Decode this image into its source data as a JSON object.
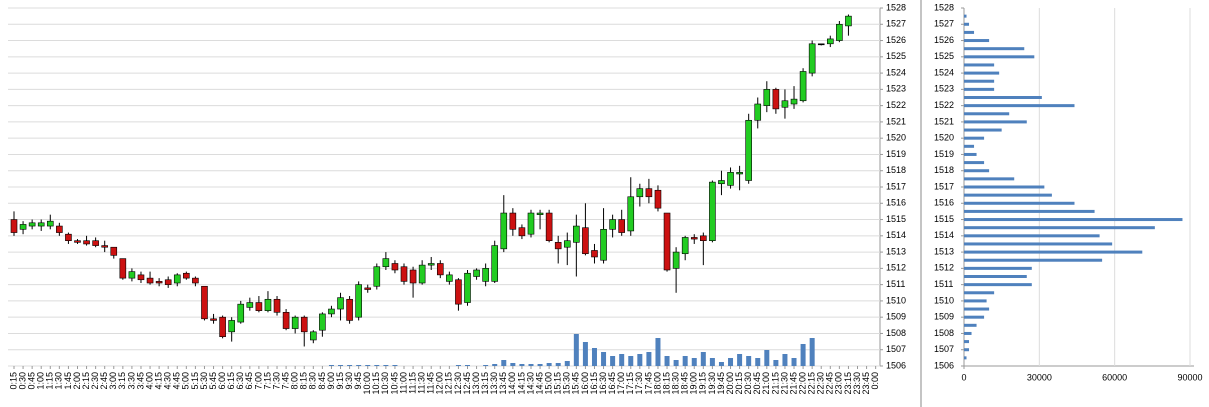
{
  "chart_data": {
    "type": "candlestick",
    "categories": [
      "0:15",
      "0:30",
      "0:45",
      "1:00",
      "1:15",
      "1:30",
      "1:45",
      "2:00",
      "2:15",
      "2:30",
      "2:45",
      "3:00",
      "3:15",
      "3:30",
      "3:45",
      "4:00",
      "4:15",
      "4:30",
      "4:45",
      "5:00",
      "5:15",
      "5:30",
      "5:45",
      "6:00",
      "6:15",
      "6:30",
      "6:45",
      "7:00",
      "7:15",
      "7:30",
      "7:45",
      "8:00",
      "8:15",
      "8:30",
      "8:45",
      "9:00",
      "9:15",
      "9:30",
      "9:45",
      "10:00",
      "10:15",
      "10:30",
      "10:45",
      "11:00",
      "11:15",
      "11:30",
      "11:45",
      "12:00",
      "12:15",
      "12:30",
      "12:45",
      "13:00",
      "13:15",
      "13:30",
      "13:45",
      "14:00",
      "14:15",
      "14:30",
      "14:45",
      "15:00",
      "15:15",
      "15:30",
      "15:45",
      "16:00",
      "16:15",
      "16:30",
      "16:45",
      "17:00",
      "17:15",
      "17:30",
      "17:45",
      "18:00",
      "18:15",
      "18:30",
      "18:45",
      "19:00",
      "19:15",
      "19:30",
      "19:45",
      "20:00",
      "20:15",
      "20:30",
      "20:45",
      "21:00",
      "21:15",
      "21:30",
      "21:45",
      "22:00",
      "22:15",
      "22:30",
      "22:45",
      "23:00",
      "23:15",
      "23:30",
      "23:45",
      "0:00"
    ],
    "open": [
      1515,
      1514.4,
      1514.6,
      1514.6,
      1514.6,
      1514.6,
      1514.1,
      1513.7,
      1513.7,
      1513.7,
      1513.4,
      1513.3,
      1512.6,
      1511.4,
      1511.6,
      1511.4,
      1511.2,
      1511.3,
      1511.1,
      1511.7,
      1511.4,
      1510.9,
      1508.9,
      1509,
      1508.1,
      1508.7,
      1509.6,
      1509.9,
      1509.4,
      1510.1,
      1509.3,
      1508.3,
      1509,
      1507.6,
      1508.2,
      1509.2,
      1509.5,
      1510.1,
      1509,
      1510.8,
      1510.9,
      1512.1,
      1512.3,
      1512.1,
      1511.9,
      1511.1,
      1512.2,
      1512.3,
      1511.2,
      1511.3,
      1509.9,
      1511.5,
      1511.2,
      1511.2,
      1513.2,
      1515.4,
      1514.5,
      1514.1,
      1515.3,
      1515.4,
      1513.6,
      1513.3,
      1513.6,
      1514.5,
      1513.1,
      1512.5,
      1514.4,
      1515,
      1514.3,
      1516.4,
      1516.9,
      1516.8,
      1515.4,
      1512,
      1512.9,
      1513.9,
      1514,
      1513.7,
      1517.2,
      1517.1,
      1517.8,
      1517.4,
      1521.1,
      1522,
      1523,
      1521.9,
      1522.1,
      1522.3,
      1524,
      1525.8,
      1525.8,
      1526,
      1526.9,
      null,
      null,
      null
    ],
    "high": [
      1515.5,
      1514.9,
      1515,
      1515,
      1515.3,
      1514.8,
      1514.2,
      1513.8,
      1514,
      1513.9,
      1513.7,
      1513.3,
      1512.6,
      1512,
      1511.8,
      1511.8,
      1511.4,
      1511.5,
      1511.7,
      1511.8,
      1511.5,
      1510.9,
      1509.2,
      1509.1,
      1509,
      1510,
      1510.2,
      1510.3,
      1510.6,
      1510.3,
      1509.5,
      1509.1,
      1509.1,
      1508.2,
      1509.3,
      1509.7,
      1510.5,
      1510.3,
      1511.2,
      1511,
      1512.3,
      1513,
      1512.5,
      1512.3,
      1512.1,
      1512.5,
      1512.7,
      1512.5,
      1511.8,
      1511.4,
      1511.9,
      1512,
      1512.3,
      1513.7,
      1516.5,
      1515.7,
      1514.7,
      1515.6,
      1515.6,
      1515.6,
      1514,
      1514.2,
      1515.3,
      1516,
      1513.5,
      1515.7,
      1515.3,
      1515.6,
      1517.6,
      1517.2,
      1517.5,
      1517.1,
      1515.4,
      1513.3,
      1514,
      1514.1,
      1514.2,
      1517.4,
      1518,
      1518.2,
      1518.3,
      1521.5,
      1522.5,
      1523.5,
      1523.1,
      1523,
      1523.2,
      1524.3,
      1526,
      1525.8,
      1526.3,
      1527.2,
      1527.6,
      null,
      null,
      null
    ],
    "low": [
      1514,
      1514.1,
      1514.4,
      1514.3,
      1514.4,
      1514,
      1513.5,
      1513.5,
      1513.4,
      1513.3,
      1513,
      1512.6,
      1511.3,
      1511.2,
      1511.1,
      1511,
      1510.9,
      1510.8,
      1510.9,
      1511.3,
      1510.9,
      1508.8,
      1508.6,
      1507.7,
      1507.5,
      1508.6,
      1509.4,
      1509.3,
      1509.3,
      1509.1,
      1508.2,
      1508,
      1507.2,
      1507.4,
      1507.8,
      1509,
      1508.8,
      1508.6,
      1508.8,
      1510.5,
      1510.7,
      1511.9,
      1511.7,
      1511,
      1510.2,
      1511,
      1511.9,
      1511.4,
      1511,
      1509.4,
      1509.7,
      1511.3,
      1510.9,
      1511.1,
      1513,
      1514,
      1513.8,
      1513.9,
      1514.4,
      1513.6,
      1512.3,
      1512.2,
      1511.5,
      1512.8,
      1512.3,
      1512.3,
      1513.9,
      1514,
      1514,
      1515.8,
      1516,
      1515.5,
      1511.8,
      1510.5,
      1512.5,
      1513.5,
      1512.2,
      1513.6,
      1516.5,
      1516.9,
      1516.8,
      1517.2,
      1520.6,
      1521.6,
      1521.5,
      1521.2,
      1521.8,
      1522.2,
      1523.8,
      1525.7,
      1525.6,
      1525.9,
      1526.3,
      null,
      null,
      null
    ],
    "close": [
      1514.2,
      1514.7,
      1514.8,
      1514.8,
      1514.9,
      1514.2,
      1513.7,
      1513.6,
      1513.5,
      1513.4,
      1513.3,
      1512.8,
      1511.4,
      1511.8,
      1511.3,
      1511.1,
      1511.1,
      1511,
      1511.6,
      1511.4,
      1511.1,
      1508.9,
      1508.8,
      1507.8,
      1508.8,
      1509.8,
      1509.9,
      1509.4,
      1510.1,
      1509.3,
      1508.3,
      1509,
      1508.1,
      1508.1,
      1509.2,
      1509.5,
      1510.2,
      1508.8,
      1511,
      1510.7,
      1512.1,
      1512.6,
      1511.9,
      1511.2,
      1511.1,
      1512.2,
      1512.3,
      1511.6,
      1511.6,
      1509.8,
      1511.7,
      1511.9,
      1512,
      1513.4,
      1515.4,
      1514.4,
      1514,
      1515.4,
      1515.4,
      1513.7,
      1513.2,
      1513.7,
      1514.6,
      1512.9,
      1512.7,
      1514.4,
      1515,
      1514.2,
      1516.4,
      1516.9,
      1516.4,
      1515.7,
      1511.9,
      1513,
      1513.9,
      1513.8,
      1513.7,
      1517.3,
      1517.4,
      1517.9,
      1517.9,
      1521.1,
      1522.1,
      1523,
      1521.8,
      1522.3,
      1522.4,
      1524.1,
      1525.8,
      1525.8,
      1526.1,
      1527,
      1527.5,
      null,
      null,
      null
    ],
    "volume": [
      null,
      null,
      null,
      null,
      null,
      null,
      null,
      null,
      null,
      null,
      null,
      null,
      null,
      null,
      null,
      null,
      null,
      null,
      null,
      null,
      null,
      null,
      null,
      null,
      null,
      null,
      null,
      null,
      null,
      null,
      null,
      null,
      null,
      null,
      null,
      1,
      1,
      1,
      1,
      1,
      1,
      1,
      1,
      null,
      null,
      null,
      null,
      null,
      null,
      1,
      1,
      null,
      1,
      2,
      6,
      3,
      2,
      2,
      2,
      3,
      3,
      5,
      32,
      24,
      18,
      14,
      10,
      12,
      10,
      12,
      14,
      28,
      10,
      6,
      10,
      8,
      14,
      8,
      4,
      8,
      12,
      10,
      8,
      16,
      6,
      12,
      8,
      22,
      28,
      null,
      null,
      null,
      null,
      null,
      null,
      null
    ],
    "up_color": "#22cc22",
    "down_color": "#cc1111",
    "volume_color": "#4f81bd",
    "ylim": [
      1506,
      1528
    ],
    "yticks": [
      1506,
      1507,
      1508,
      1509,
      1510,
      1511,
      1512,
      1513,
      1514,
      1515,
      1516,
      1517,
      1518,
      1519,
      1520,
      1521,
      1522,
      1523,
      1524,
      1525,
      1526,
      1527,
      1528
    ],
    "grid": true,
    "profile": {
      "prices": [
        1506.5,
        1507,
        1507.5,
        1508,
        1508.5,
        1509,
        1509.5,
        1510,
        1510.5,
        1511,
        1511.5,
        1512,
        1512.5,
        1513,
        1513.5,
        1514,
        1514.5,
        1515,
        1515.5,
        1516,
        1516.5,
        1517,
        1517.5,
        1518,
        1518.5,
        1519,
        1519.5,
        1520,
        1520.5,
        1521,
        1521.5,
        1522,
        1522.5,
        1523,
        1523.5,
        1524,
        1524.5,
        1525,
        1525.5,
        1526,
        1526.5,
        1527,
        1527.5
      ],
      "values": [
        1000,
        2000,
        2000,
        3000,
        5000,
        8000,
        10000,
        9000,
        12000,
        27000,
        25000,
        27000,
        55000,
        71000,
        59000,
        54000,
        76000,
        87000,
        52000,
        44000,
        35000,
        32000,
        20000,
        10000,
        8000,
        5000,
        4000,
        8000,
        15000,
        25000,
        18000,
        44000,
        31000,
        12000,
        12000,
        14000,
        12000,
        28000,
        24000,
        10000,
        4000,
        2000,
        1000
      ],
      "color": "#4f81bd",
      "xlim": [
        0,
        90000
      ],
      "xticks": [
        0,
        30000,
        60000,
        90000
      ]
    }
  }
}
